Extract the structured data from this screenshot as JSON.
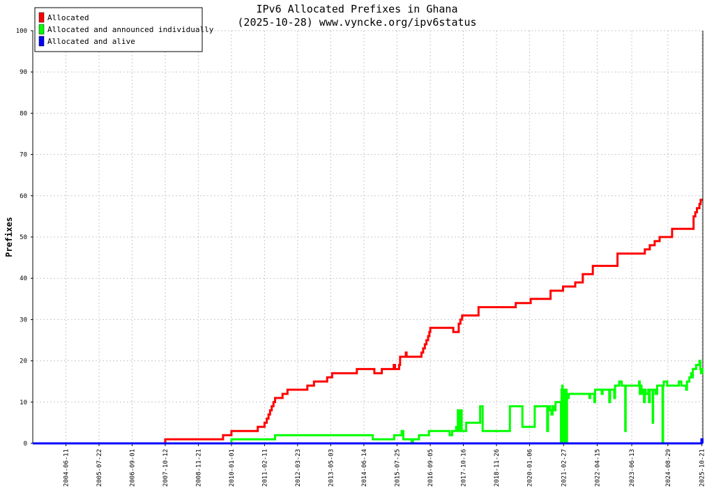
{
  "chart_data": {
    "type": "line",
    "title": "IPv6 Allocated Prefixes in Ghana",
    "subtitle": "(2025-10-28) www.vyncke.org/ipv6status",
    "ylabel": "Prefixes",
    "xlabel": "",
    "ylim": [
      0,
      100
    ],
    "yticks": [
      "0",
      "10",
      "20",
      "30",
      "40",
      "50",
      "60",
      "70",
      "80",
      "90",
      "100"
    ],
    "xlim": [
      "2003-05-01",
      "2025-11-01"
    ],
    "xticks": [
      "2004-06-11",
      "2005-07-22",
      "2006-09-01",
      "2007-10-12",
      "2008-11-21",
      "2010-01-01",
      "2011-02-11",
      "2012-03-23",
      "2013-05-03",
      "2014-06-14",
      "2015-07-25",
      "2016-09-05",
      "2017-10-16",
      "2018-11-26",
      "2020-01-06",
      "2021-02-27",
      "2022-04-15",
      "2023-06-13",
      "2024-08-29",
      "2025-10-21"
    ],
    "grid": true,
    "legend_position": "top-left",
    "series": [
      {
        "name": "Allocated",
        "color": "#ff0000",
        "points": [
          [
            "2003-05-01",
            0
          ],
          [
            "2007-10-01",
            0
          ],
          [
            "2007-10-12",
            1
          ],
          [
            "2009-09-01",
            1
          ],
          [
            "2009-09-20",
            2
          ],
          [
            "2009-12-15",
            2
          ],
          [
            "2010-01-01",
            3
          ],
          [
            "2010-11-01",
            3
          ],
          [
            "2010-11-20",
            4
          ],
          [
            "2011-02-01",
            4
          ],
          [
            "2011-02-11",
            5
          ],
          [
            "2011-03-10",
            6
          ],
          [
            "2011-04-01",
            7
          ],
          [
            "2011-04-20",
            8
          ],
          [
            "2011-05-10",
            9
          ],
          [
            "2011-06-01",
            10
          ],
          [
            "2011-06-20",
            11
          ],
          [
            "2011-09-01",
            11
          ],
          [
            "2011-09-20",
            12
          ],
          [
            "2011-11-01",
            12
          ],
          [
            "2011-11-20",
            13
          ],
          [
            "2012-07-01",
            13
          ],
          [
            "2012-07-20",
            14
          ],
          [
            "2012-09-20",
            14
          ],
          [
            "2012-10-10",
            15
          ],
          [
            "2013-03-01",
            15
          ],
          [
            "2013-03-20",
            16
          ],
          [
            "2013-05-01",
            16
          ],
          [
            "2013-05-20",
            17
          ],
          [
            "2014-03-01",
            17
          ],
          [
            "2014-03-20",
            18
          ],
          [
            "2014-10-01",
            18
          ],
          [
            "2014-10-20",
            17
          ],
          [
            "2015-01-01",
            17
          ],
          [
            "2015-01-20",
            18
          ],
          [
            "2015-06-01",
            18
          ],
          [
            "2015-06-15",
            19
          ],
          [
            "2015-07-01",
            18
          ],
          [
            "2015-08-01",
            18
          ],
          [
            "2015-08-20",
            19
          ],
          [
            "2015-09-01",
            21
          ],
          [
            "2015-11-01",
            21
          ],
          [
            "2015-11-10",
            22
          ],
          [
            "2015-11-20",
            21
          ],
          [
            "2016-05-01",
            21
          ],
          [
            "2016-05-20",
            22
          ],
          [
            "2016-06-10",
            23
          ],
          [
            "2016-07-01",
            24
          ],
          [
            "2016-07-20",
            25
          ],
          [
            "2016-08-10",
            26
          ],
          [
            "2016-08-25",
            27
          ],
          [
            "2016-09-05",
            28
          ],
          [
            "2017-06-01",
            28
          ],
          [
            "2017-06-15",
            27
          ],
          [
            "2017-08-01",
            27
          ],
          [
            "2017-08-20",
            29
          ],
          [
            "2017-09-10",
            30
          ],
          [
            "2017-10-01",
            31
          ],
          [
            "2018-04-01",
            31
          ],
          [
            "2018-04-20",
            33
          ],
          [
            "2019-07-01",
            33
          ],
          [
            "2019-07-20",
            34
          ],
          [
            "2020-01-01",
            34
          ],
          [
            "2020-01-20",
            35
          ],
          [
            "2020-09-01",
            35
          ],
          [
            "2020-09-20",
            37
          ],
          [
            "2021-02-01",
            37
          ],
          [
            "2021-02-20",
            38
          ],
          [
            "2021-07-01",
            38
          ],
          [
            "2021-07-20",
            39
          ],
          [
            "2021-10-01",
            39
          ],
          [
            "2021-10-20",
            41
          ],
          [
            "2022-02-01",
            41
          ],
          [
            "2022-02-20",
            43
          ],
          [
            "2022-12-01",
            43
          ],
          [
            "2022-12-20",
            46
          ],
          [
            "2023-11-01",
            46
          ],
          [
            "2023-11-20",
            47
          ],
          [
            "2024-01-01",
            47
          ],
          [
            "2024-01-20",
            48
          ],
          [
            "2024-03-01",
            48
          ],
          [
            "2024-03-20",
            49
          ],
          [
            "2024-05-01",
            49
          ],
          [
            "2024-05-20",
            50
          ],
          [
            "2024-10-01",
            50
          ],
          [
            "2024-10-20",
            52
          ],
          [
            "2025-07-01",
            52
          ],
          [
            "2025-07-10",
            55
          ],
          [
            "2025-08-01",
            56
          ],
          [
            "2025-08-20",
            57
          ],
          [
            "2025-09-20",
            58
          ],
          [
            "2025-10-05",
            59
          ],
          [
            "2025-10-28",
            59
          ]
        ]
      },
      {
        "name": "Allocated and announced individually",
        "color": "#00ff00",
        "points": [
          [
            "2003-05-01",
            0
          ],
          [
            "2009-12-15",
            0
          ],
          [
            "2010-01-01",
            1
          ],
          [
            "2011-06-01",
            1
          ],
          [
            "2011-06-20",
            2
          ],
          [
            "2014-09-15",
            2
          ],
          [
            "2014-10-01",
            1
          ],
          [
            "2015-06-01",
            1
          ],
          [
            "2015-06-20",
            2
          ],
          [
            "2015-09-10",
            2
          ],
          [
            "2015-09-20",
            3
          ],
          [
            "2015-10-10",
            1
          ],
          [
            "2016-01-01",
            1
          ],
          [
            "2016-01-20",
            0
          ],
          [
            "2016-02-05",
            1
          ],
          [
            "2016-04-01",
            1
          ],
          [
            "2016-04-20",
            2
          ],
          [
            "2016-08-01",
            2
          ],
          [
            "2016-08-20",
            3
          ],
          [
            "2017-04-01",
            3
          ],
          [
            "2017-05-01",
            2
          ],
          [
            "2017-06-01",
            3
          ],
          [
            "2017-07-01",
            3
          ],
          [
            "2017-07-20",
            4
          ],
          [
            "2017-08-01",
            3
          ],
          [
            "2017-08-10",
            8
          ],
          [
            "2017-08-20",
            3
          ],
          [
            "2017-09-01",
            3
          ],
          [
            "2017-09-10",
            8
          ],
          [
            "2017-09-25",
            3
          ],
          [
            "2017-11-10",
            3
          ],
          [
            "2017-11-20",
            5
          ],
          [
            "2018-05-01",
            5
          ],
          [
            "2018-05-10",
            9
          ],
          [
            "2018-06-01",
            9
          ],
          [
            "2018-06-10",
            3
          ],
          [
            "2019-05-01",
            3
          ],
          [
            "2019-05-10",
            9
          ],
          [
            "2019-10-01",
            9
          ],
          [
            "2019-10-10",
            4
          ],
          [
            "2020-03-01",
            4
          ],
          [
            "2020-03-10",
            9
          ],
          [
            "2020-08-01",
            9
          ],
          [
            "2020-08-10",
            3
          ],
          [
            "2020-08-20",
            9
          ],
          [
            "2020-09-10",
            9
          ],
          [
            "2020-09-15",
            8
          ],
          [
            "2020-10-01",
            7
          ],
          [
            "2020-10-15",
            9
          ],
          [
            "2020-11-01",
            8
          ],
          [
            "2020-11-20",
            10
          ],
          [
            "2021-01-20",
            10
          ],
          [
            "2021-01-25",
            0
          ],
          [
            "2021-02-01",
            13
          ],
          [
            "2021-02-05",
            0
          ],
          [
            "2021-02-10",
            14
          ],
          [
            "2021-02-15",
            0
          ],
          [
            "2021-02-20",
            13
          ],
          [
            "2021-02-28",
            0
          ],
          [
            "2021-03-05",
            13
          ],
          [
            "2021-03-10",
            0
          ],
          [
            "2021-03-15",
            13
          ],
          [
            "2021-03-20",
            0
          ],
          [
            "2021-03-28",
            13
          ],
          [
            "2021-04-05",
            0
          ],
          [
            "2021-04-10",
            12
          ],
          [
            "2021-04-20",
            12
          ],
          [
            "2021-04-25",
            11
          ],
          [
            "2021-05-01",
            12
          ],
          [
            "2022-01-01",
            12
          ],
          [
            "2022-01-10",
            11
          ],
          [
            "2022-01-20",
            12
          ],
          [
            "2022-03-01",
            12
          ],
          [
            "2022-03-10",
            10
          ],
          [
            "2022-03-20",
            13
          ],
          [
            "2022-06-01",
            13
          ],
          [
            "2022-06-10",
            12
          ],
          [
            "2022-06-20",
            13
          ],
          [
            "2022-09-01",
            13
          ],
          [
            "2022-09-10",
            10
          ],
          [
            "2022-09-20",
            13
          ],
          [
            "2022-11-01",
            13
          ],
          [
            "2022-11-10",
            11
          ],
          [
            "2022-11-20",
            14
          ],
          [
            "2023-01-01",
            14
          ],
          [
            "2023-01-10",
            15
          ],
          [
            "2023-02-01",
            15
          ],
          [
            "2023-02-10",
            14
          ],
          [
            "2023-03-20",
            14
          ],
          [
            "2023-03-25",
            3
          ],
          [
            "2023-03-30",
            14
          ],
          [
            "2023-09-01",
            14
          ],
          [
            "2023-09-10",
            15
          ],
          [
            "2023-09-20",
            12
          ],
          [
            "2023-10-01",
            14
          ],
          [
            "2023-10-10",
            13
          ],
          [
            "2023-10-20",
            12
          ],
          [
            "2023-11-01",
            13
          ],
          [
            "2023-11-10",
            10
          ],
          [
            "2023-11-20",
            13
          ],
          [
            "2023-12-01",
            12
          ],
          [
            "2024-01-01",
            13
          ],
          [
            "2024-01-10",
            10
          ],
          [
            "2024-01-20",
            13
          ],
          [
            "2024-02-20",
            13
          ],
          [
            "2024-02-25",
            5
          ],
          [
            "2024-03-01",
            13
          ],
          [
            "2024-03-20",
            13
          ],
          [
            "2024-04-01",
            12
          ],
          [
            "2024-04-20",
            14
          ],
          [
            "2024-06-20",
            14
          ],
          [
            "2024-06-25",
            0
          ],
          [
            "2024-07-01",
            14
          ],
          [
            "2024-07-10",
            15
          ],
          [
            "2024-08-10",
            15
          ],
          [
            "2024-08-20",
            14
          ],
          [
            "2025-01-01",
            14
          ],
          [
            "2025-01-10",
            15
          ],
          [
            "2025-02-01",
            15
          ],
          [
            "2025-02-10",
            14
          ],
          [
            "2025-04-01",
            14
          ],
          [
            "2025-04-10",
            13
          ],
          [
            "2025-04-20",
            15
          ],
          [
            "2025-05-20",
            16
          ],
          [
            "2025-06-10",
            17
          ],
          [
            "2025-06-20",
            16
          ],
          [
            "2025-07-01",
            18
          ],
          [
            "2025-08-01",
            18
          ],
          [
            "2025-08-10",
            19
          ],
          [
            "2025-09-10",
            19
          ],
          [
            "2025-09-20",
            20
          ],
          [
            "2025-10-01",
            18
          ],
          [
            "2025-10-10",
            17
          ],
          [
            "2025-10-20",
            18
          ],
          [
            "2025-10-28",
            17
          ]
        ]
      },
      {
        "name": "Allocated and alive",
        "color": "#0000ff",
        "points": [
          [
            "2003-05-01",
            0
          ],
          [
            "2025-10-10",
            0
          ],
          [
            "2025-10-15",
            1
          ],
          [
            "2025-10-22",
            1
          ],
          [
            "2025-10-28",
            0
          ]
        ]
      }
    ]
  }
}
